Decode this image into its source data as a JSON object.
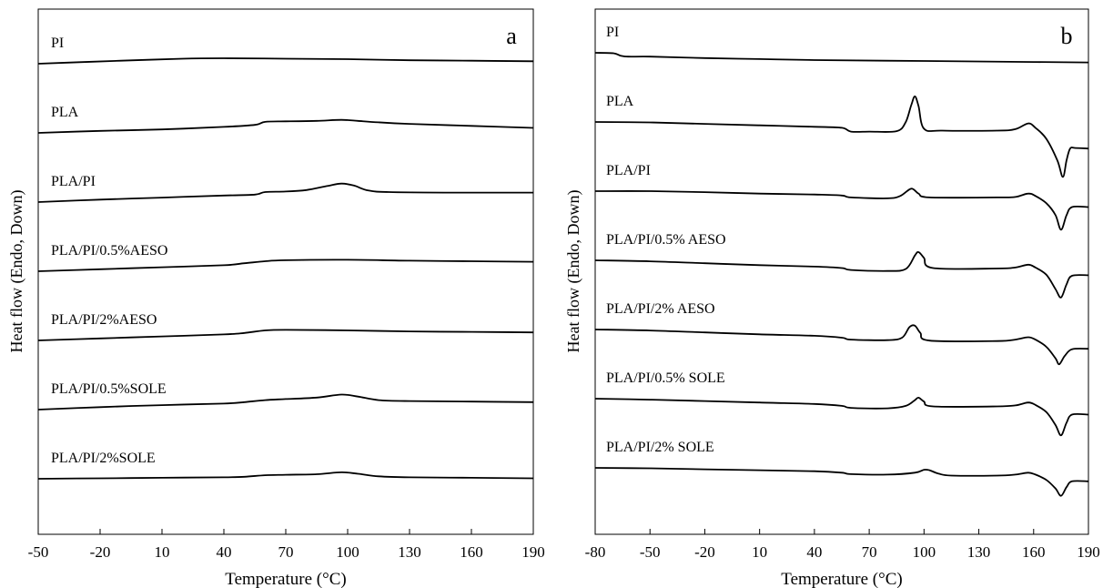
{
  "chart_data": [
    {
      "type": "line",
      "panel_label": "a",
      "xlabel": "Temperature (°C)",
      "ylabel": "Heat flow (Endo, Down)",
      "xlim": [
        -50,
        190
      ],
      "xticks": [
        -50,
        -20,
        10,
        40,
        70,
        100,
        130,
        160,
        190
      ],
      "grid": false,
      "series": [
        {
          "name": "PI",
          "baseline": 0.0,
          "points": [
            [
              -50,
              0.0
            ],
            [
              -30,
              0.3
            ],
            [
              -10,
              0.6
            ],
            [
              20,
              1.0
            ],
            [
              40,
              1.1
            ],
            [
              70,
              1.0
            ],
            [
              100,
              0.9
            ],
            [
              130,
              0.7
            ],
            [
              160,
              0.6
            ],
            [
              190,
              0.5
            ]
          ]
        },
        {
          "name": "PLA",
          "baseline": -1.0,
          "points": [
            [
              -50,
              -1.0
            ],
            [
              -20,
              -0.6
            ],
            [
              10,
              -0.3
            ],
            [
              40,
              0.2
            ],
            [
              55,
              0.6
            ],
            [
              60,
              1.2
            ],
            [
              70,
              1.3
            ],
            [
              85,
              1.4
            ],
            [
              97,
              1.6
            ],
            [
              105,
              1.4
            ],
            [
              115,
              1.1
            ],
            [
              130,
              0.8
            ],
            [
              160,
              0.4
            ],
            [
              190,
              0.0
            ]
          ]
        },
        {
          "name": "PLA/PI",
          "baseline": -2.0,
          "points": [
            [
              -50,
              -2.0
            ],
            [
              -20,
              -1.5
            ],
            [
              10,
              -1.1
            ],
            [
              40,
              -0.7
            ],
            [
              55,
              -0.5
            ],
            [
              60,
              0.0
            ],
            [
              70,
              0.1
            ],
            [
              80,
              0.4
            ],
            [
              90,
              1.2
            ],
            [
              97,
              1.7
            ],
            [
              103,
              1.3
            ],
            [
              110,
              0.3
            ],
            [
              120,
              0.0
            ],
            [
              150,
              -0.1
            ],
            [
              190,
              -0.1
            ]
          ]
        },
        {
          "name": "PLA/PI/0.5%AESO",
          "baseline": -3.0,
          "points": [
            [
              -50,
              -3.0
            ],
            [
              -20,
              -2.6
            ],
            [
              10,
              -2.2
            ],
            [
              40,
              -1.8
            ],
            [
              50,
              -1.4
            ],
            [
              60,
              -1.0
            ],
            [
              70,
              -0.8
            ],
            [
              100,
              -0.7
            ],
            [
              130,
              -0.9
            ],
            [
              160,
              -1.0
            ],
            [
              190,
              -1.1
            ]
          ]
        },
        {
          "name": "PLA/PI/2%AESO",
          "baseline": -4.0,
          "points": [
            [
              -50,
              -4.0
            ],
            [
              -20,
              -3.6
            ],
            [
              10,
              -3.2
            ],
            [
              40,
              -2.8
            ],
            [
              50,
              -2.5
            ],
            [
              60,
              -2.0
            ],
            [
              70,
              -1.9
            ],
            [
              100,
              -2.0
            ],
            [
              130,
              -2.2
            ],
            [
              160,
              -2.3
            ],
            [
              190,
              -2.4
            ]
          ]
        },
        {
          "name": "PLA/PI/0.5%SOLE",
          "baseline": -5.0,
          "points": [
            [
              -50,
              -5.0
            ],
            [
              -20,
              -4.5
            ],
            [
              10,
              -4.1
            ],
            [
              40,
              -3.8
            ],
            [
              50,
              -3.5
            ],
            [
              60,
              -3.1
            ],
            [
              70,
              -2.9
            ],
            [
              85,
              -2.6
            ],
            [
              97,
              -2.0
            ],
            [
              105,
              -2.4
            ],
            [
              115,
              -3.1
            ],
            [
              130,
              -3.3
            ],
            [
              160,
              -3.4
            ],
            [
              190,
              -3.5
            ]
          ]
        },
        {
          "name": "PLA/PI/2%SOLE",
          "baseline": -6.0,
          "points": [
            [
              -50,
              -6.0
            ],
            [
              -20,
              -5.9
            ],
            [
              10,
              -5.8
            ],
            [
              40,
              -5.7
            ],
            [
              50,
              -5.6
            ],
            [
              60,
              -5.3
            ],
            [
              70,
              -5.2
            ],
            [
              85,
              -5.1
            ],
            [
              97,
              -4.7
            ],
            [
              105,
              -5.0
            ],
            [
              115,
              -5.5
            ],
            [
              130,
              -5.7
            ],
            [
              160,
              -5.8
            ],
            [
              190,
              -5.9
            ]
          ]
        }
      ]
    },
    {
      "type": "line",
      "panel_label": "b",
      "xlabel": "Temperature (°C)",
      "ylabel": "Heat flow (Endo, Down)",
      "xlim": [
        -80,
        190
      ],
      "xticks": [
        -80,
        -50,
        -20,
        10,
        40,
        70,
        100,
        130,
        160,
        190
      ],
      "grid": false,
      "series": [
        {
          "name": "PI",
          "baseline": 0.0,
          "points": [
            [
              -80,
              0.0
            ],
            [
              -70,
              -0.1
            ],
            [
              -66,
              -0.6
            ],
            [
              -62,
              -0.8
            ],
            [
              -50,
              -0.8
            ],
            [
              -20,
              -1.1
            ],
            [
              10,
              -1.3
            ],
            [
              40,
              -1.5
            ],
            [
              100,
              -1.7
            ],
            [
              160,
              -1.9
            ],
            [
              190,
              -2.0
            ]
          ]
        },
        {
          "name": "PLA",
          "baseline": -1.0,
          "points": [
            [
              -80,
              -1.0
            ],
            [
              -50,
              -1.1
            ],
            [
              -20,
              -1.4
            ],
            [
              10,
              -1.7
            ],
            [
              40,
              -2.0
            ],
            [
              55,
              -2.2
            ],
            [
              60,
              -3.0
            ],
            [
              70,
              -3.0
            ],
            [
              85,
              -2.9
            ],
            [
              90,
              -1.0
            ],
            [
              93,
              2.5
            ],
            [
              95,
              4.3
            ],
            [
              97,
              2.3
            ],
            [
              100,
              -2.4
            ],
            [
              110,
              -2.8
            ],
            [
              140,
              -2.8
            ],
            [
              150,
              -2.5
            ],
            [
              157,
              -1.3
            ],
            [
              161,
              -2.2
            ],
            [
              167,
              -4.5
            ],
            [
              173,
              -9.0
            ],
            [
              176,
              -12.4
            ],
            [
              178,
              -9.0
            ],
            [
              180,
              -6.5
            ],
            [
              183,
              -6.4
            ],
            [
              190,
              -6.5
            ]
          ]
        },
        {
          "name": "PLA/PI",
          "baseline": -2.0,
          "points": [
            [
              -80,
              -2.0
            ],
            [
              -50,
              -2.0
            ],
            [
              -20,
              -2.2
            ],
            [
              10,
              -2.5
            ],
            [
              40,
              -2.7
            ],
            [
              55,
              -2.9
            ],
            [
              60,
              -3.3
            ],
            [
              80,
              -3.5
            ],
            [
              87,
              -3.0
            ],
            [
              93,
              -1.5
            ],
            [
              97,
              -2.5
            ],
            [
              103,
              -3.3
            ],
            [
              140,
              -3.3
            ],
            [
              150,
              -3.2
            ],
            [
              157,
              -2.5
            ],
            [
              161,
              -3.0
            ],
            [
              167,
              -4.5
            ],
            [
              172,
              -7.0
            ],
            [
              175,
              -10.0
            ],
            [
              178,
              -7.0
            ],
            [
              181,
              -5.3
            ],
            [
              190,
              -5.3
            ]
          ]
        },
        {
          "name": "PLA/PI/0.5% AESO",
          "baseline": -3.0,
          "points": [
            [
              -80,
              -3.0
            ],
            [
              -50,
              -3.2
            ],
            [
              -20,
              -3.6
            ],
            [
              10,
              -4.0
            ],
            [
              40,
              -4.3
            ],
            [
              55,
              -4.6
            ],
            [
              60,
              -5.0
            ],
            [
              80,
              -5.2
            ],
            [
              90,
              -4.8
            ],
            [
              95,
              -2.0
            ],
            [
              97,
              -1.3
            ],
            [
              100,
              -2.5
            ],
            [
              105,
              -4.6
            ],
            [
              140,
              -4.7
            ],
            [
              150,
              -4.5
            ],
            [
              157,
              -3.9
            ],
            [
              161,
              -4.5
            ],
            [
              167,
              -6.0
            ],
            [
              172,
              -9.0
            ],
            [
              175,
              -10.7
            ],
            [
              178,
              -8.0
            ],
            [
              181,
              -6.2
            ],
            [
              190,
              -6.1
            ]
          ]
        },
        {
          "name": "PLA/PI/2% AESO",
          "baseline": -4.0,
          "points": [
            [
              -80,
              -4.0
            ],
            [
              -50,
              -4.2
            ],
            [
              -20,
              -4.6
            ],
            [
              10,
              -5.0
            ],
            [
              40,
              -5.3
            ],
            [
              55,
              -5.7
            ],
            [
              60,
              -6.1
            ],
            [
              80,
              -6.2
            ],
            [
              88,
              -5.7
            ],
            [
              92,
              -3.5
            ],
            [
              95,
              -3.2
            ],
            [
              98,
              -4.7
            ],
            [
              103,
              -6.3
            ],
            [
              140,
              -6.4
            ],
            [
              150,
              -6.1
            ],
            [
              157,
              -5.6
            ],
            [
              161,
              -6.1
            ],
            [
              167,
              -7.6
            ],
            [
              172,
              -10.0
            ],
            [
              174,
              -11.2
            ],
            [
              177,
              -9.5
            ],
            [
              181,
              -8.1
            ],
            [
              190,
              -8.0
            ]
          ]
        },
        {
          "name": "PLA/PI/0.5% SOLE",
          "baseline": -5.0,
          "points": [
            [
              -80,
              -5.0
            ],
            [
              -50,
              -5.2
            ],
            [
              -20,
              -5.5
            ],
            [
              10,
              -5.8
            ],
            [
              40,
              -6.1
            ],
            [
              55,
              -6.5
            ],
            [
              60,
              -6.9
            ],
            [
              80,
              -7.0
            ],
            [
              90,
              -6.5
            ],
            [
              95,
              -5.3
            ],
            [
              97,
              -4.8
            ],
            [
              100,
              -5.6
            ],
            [
              105,
              -6.6
            ],
            [
              140,
              -6.6
            ],
            [
              150,
              -6.4
            ],
            [
              157,
              -5.8
            ],
            [
              161,
              -6.3
            ],
            [
              167,
              -7.8
            ],
            [
              172,
              -10.5
            ],
            [
              175,
              -12.6
            ],
            [
              178,
              -10.0
            ],
            [
              181,
              -8.3
            ],
            [
              190,
              -8.3
            ]
          ]
        },
        {
          "name": "PLA/PI/2% SOLE",
          "baseline": -6.0,
          "points": [
            [
              -80,
              -6.0
            ],
            [
              -50,
              -6.1
            ],
            [
              -20,
              -6.3
            ],
            [
              10,
              -6.5
            ],
            [
              40,
              -6.7
            ],
            [
              55,
              -7.0
            ],
            [
              60,
              -7.3
            ],
            [
              80,
              -7.4
            ],
            [
              95,
              -7.0
            ],
            [
              100,
              -6.4
            ],
            [
              103,
              -6.5
            ],
            [
              108,
              -7.2
            ],
            [
              115,
              -7.6
            ],
            [
              140,
              -7.6
            ],
            [
              150,
              -7.4
            ],
            [
              157,
              -7.0
            ],
            [
              161,
              -7.4
            ],
            [
              167,
              -8.5
            ],
            [
              172,
              -10.3
            ],
            [
              175,
              -11.8
            ],
            [
              178,
              -10.0
            ],
            [
              181,
              -8.8
            ],
            [
              190,
              -8.8
            ]
          ]
        }
      ]
    }
  ]
}
